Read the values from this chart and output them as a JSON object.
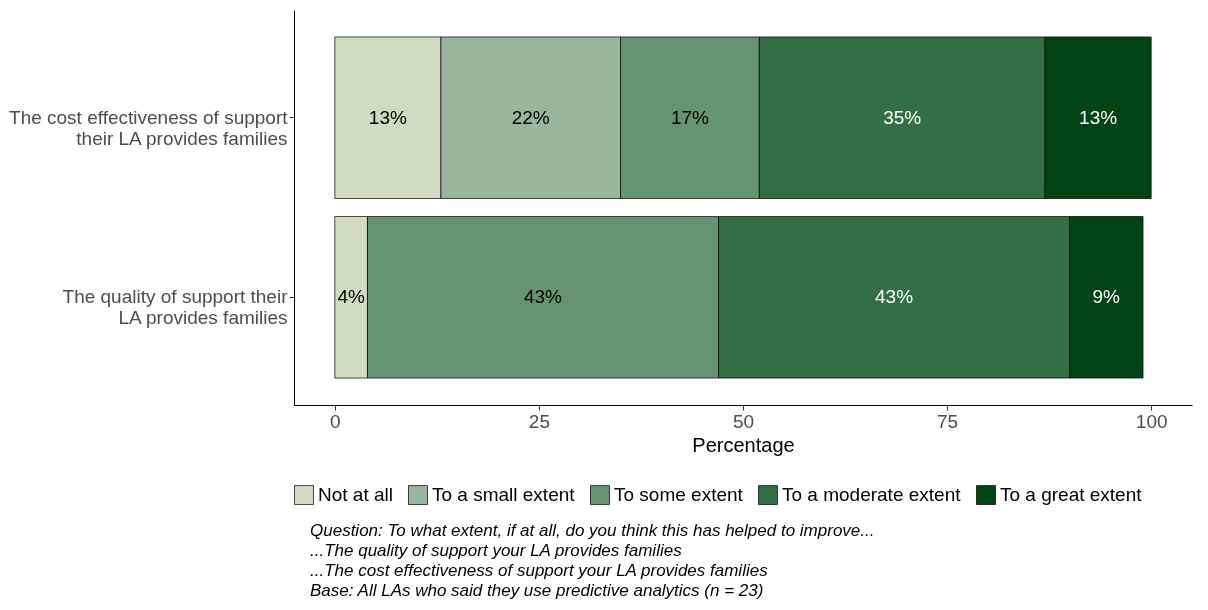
{
  "chart_data": {
    "type": "bar",
    "orientation": "horizontal",
    "stacked": true,
    "categories": [
      "The cost effectiveness of support their LA provides families",
      "The quality of support their LA provides families"
    ],
    "series": [
      {
        "name": "Not at all",
        "color": "#d0dbbf",
        "values": [
          13,
          4
        ],
        "value_labels": [
          "13%",
          "4%"
        ]
      },
      {
        "name": "To a small extent",
        "color": "#98b59d",
        "values": [
          22,
          null
        ],
        "value_labels": [
          "22%",
          null
        ]
      },
      {
        "name": "To some extent",
        "color": "#669470",
        "values": [
          17,
          43
        ],
        "value_labels": [
          "17%",
          "43%"
        ]
      },
      {
        "name": "To a moderate extent",
        "color": "#346e44",
        "values": [
          35,
          43
        ],
        "value_labels": [
          "35%",
          "43%"
        ]
      },
      {
        "name": "To a great extent",
        "color": "#004414",
        "values": [
          13,
          9
        ],
        "value_labels": [
          "13%",
          "9%"
        ]
      }
    ],
    "xlim": [
      -5,
      105
    ],
    "xticks": [
      0,
      25,
      50,
      75,
      100
    ],
    "xlabel": "Percentage",
    "grid": false,
    "legend": "bottom",
    "annotations": [
      "Question: To what extent, if at all, do you think this has helped to improve...",
      "...The quality of support your LA provides families",
      "...The cost effectiveness of support your LA provides families",
      "Base: All LAs who said they use predictive analytics (n = 23)"
    ]
  }
}
